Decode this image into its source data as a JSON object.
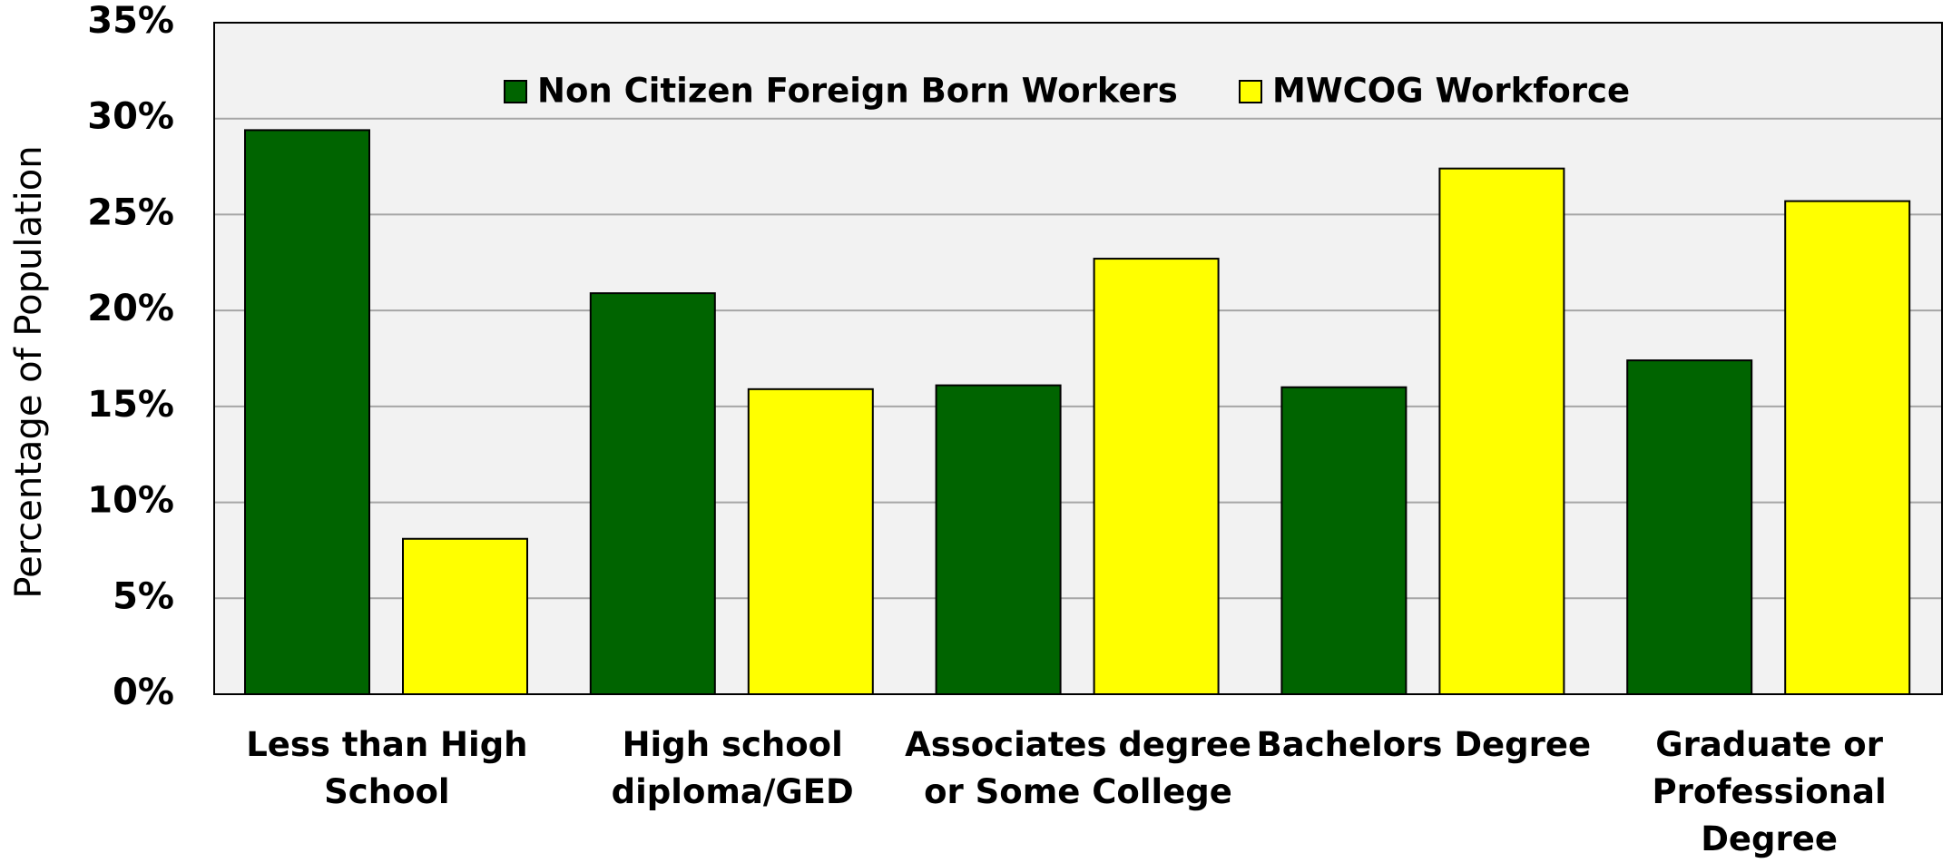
{
  "chart_data": {
    "type": "bar",
    "y_axis_label": "Percentage of Population",
    "categories": [
      "Less than High School",
      "High school diploma/GED",
      "Associates degree or Some College",
      "Bachelors Degree",
      "Graduate or Professional Degree"
    ],
    "series": [
      {
        "name": "Non Citizen Foreign Born Workers",
        "color": "#006400",
        "values": [
          29.4,
          20.9,
          16.1,
          16.0,
          17.4
        ]
      },
      {
        "name": "MWCOG Workforce",
        "color": "#ffff00",
        "values": [
          8.1,
          15.9,
          22.7,
          27.4,
          25.7
        ]
      }
    ],
    "ylim": [
      0,
      35
    ],
    "yticks": [
      {
        "value": 0,
        "label": "0%"
      },
      {
        "value": 5,
        "label": "5%"
      },
      {
        "value": 10,
        "label": "10%"
      },
      {
        "value": 15,
        "label": "15%"
      },
      {
        "value": 20,
        "label": "20%"
      },
      {
        "value": 25,
        "label": "25%"
      },
      {
        "value": 30,
        "label": "30%"
      },
      {
        "value": 35,
        "label": "35%"
      }
    ],
    "grid": true
  }
}
